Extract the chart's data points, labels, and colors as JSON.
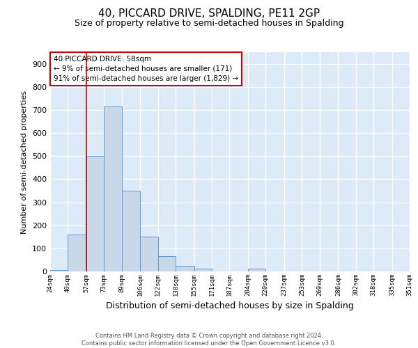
{
  "title": "40, PICCARD DRIVE, SPALDING, PE11 2GP",
  "subtitle": "Size of property relative to semi-detached houses in Spalding",
  "xlabel": "Distribution of semi-detached houses by size in Spalding",
  "ylabel": "Number of semi-detached properties",
  "bin_edges": [
    24,
    40,
    57,
    73,
    89,
    106,
    122,
    138,
    155,
    171,
    187,
    204,
    220,
    237,
    253,
    269,
    286,
    302,
    318,
    335,
    351
  ],
  "bar_heights": [
    5,
    160,
    500,
    715,
    350,
    150,
    65,
    25,
    12,
    0,
    0,
    12,
    0,
    0,
    0,
    0,
    0,
    0,
    0,
    0
  ],
  "bar_color": "#c8d8e8",
  "bar_edge_color": "#5b9bd5",
  "red_line_x": 57,
  "ylim": [
    0,
    950
  ],
  "yticks": [
    0,
    100,
    200,
    300,
    400,
    500,
    600,
    700,
    800,
    900
  ],
  "annotation_title": "40 PICCARD DRIVE: 58sqm",
  "annotation_line1": "← 9% of semi-detached houses are smaller (171)",
  "annotation_line2": "91% of semi-detached houses are larger (1,829) →",
  "annotation_box_color": "#ffffff",
  "annotation_box_edge_color": "#cc0000",
  "footnote1": "Contains HM Land Registry data © Crown copyright and database right 2024.",
  "footnote2": "Contains public sector information licensed under the Open Government Licence v3.0.",
  "background_color": "#ddeaf8",
  "grid_color": "#ffffff",
  "title_fontsize": 11,
  "subtitle_fontsize": 9,
  "annotation_fontsize": 7.5,
  "xlabel_fontsize": 9,
  "ylabel_fontsize": 8,
  "tick_labels": [
    "24sqm",
    "40sqm",
    "57sqm",
    "73sqm",
    "89sqm",
    "106sqm",
    "122sqm",
    "138sqm",
    "155sqm",
    "171sqm",
    "187sqm",
    "204sqm",
    "220sqm",
    "237sqm",
    "253sqm",
    "269sqm",
    "286sqm",
    "302sqm",
    "318sqm",
    "335sqm",
    "351sqm"
  ]
}
